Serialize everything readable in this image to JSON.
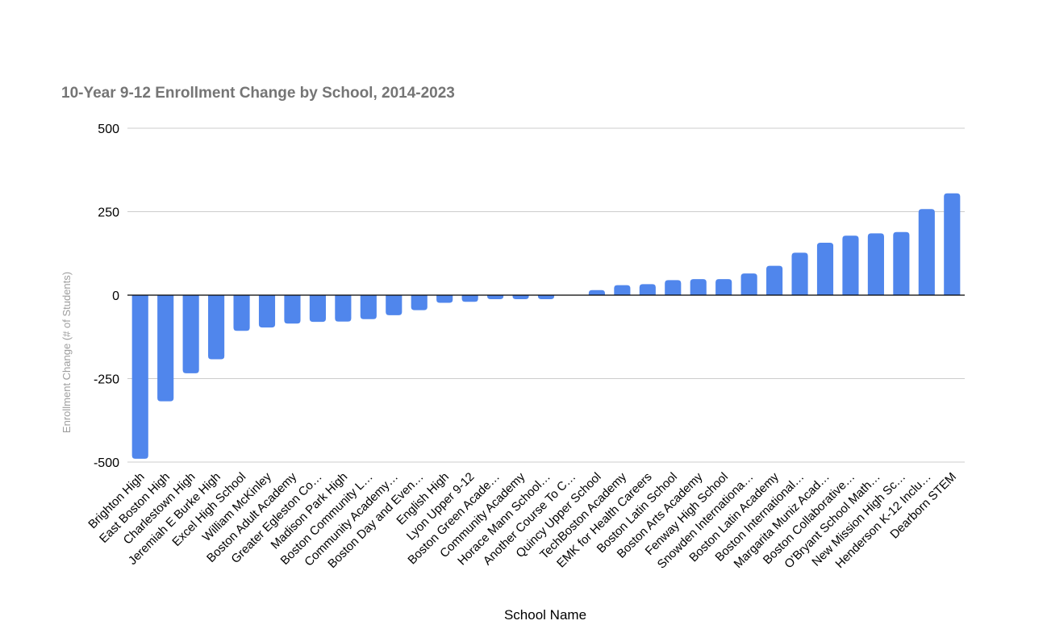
{
  "chart_data": {
    "type": "bar",
    "title": "10-Year 9-12 Enrollment Change by School, 2014-2023",
    "xlabel": "School Name",
    "ylabel": "Enrollment Change (# of Students)",
    "ylim": [
      -500,
      500
    ],
    "yticks": [
      500,
      250,
      0,
      -250,
      -500
    ],
    "grid": true,
    "bar_color": "#5086ec",
    "categories": [
      "Brighton High",
      "East Boston High",
      "Charlestown High",
      "Jeremiah E Burke High",
      "Excel High School",
      "William McKinley",
      "Boston Adult Academy",
      "Greater Egleston Co…",
      "Madison Park High",
      "Boston Community L…",
      "Community Academy…",
      "Boston Day and Even…",
      "English High",
      "Lyon Upper 9-12",
      "Boston Green Acade…",
      "Community Academy",
      "Horace Mann School…",
      "Another Course To C…",
      "Quincy Upper School",
      "TechBoston Academy",
      "EMK for Health Careers",
      "Boston Latin School",
      "Boston Arts Academy",
      "Fenway High School",
      "Snowden Internationa…",
      "Boston Latin Academy",
      "Boston International…",
      "Margarita Muniz Acad…",
      "Boston Collaborative…",
      "O'Bryant School Math…",
      "New Mission High Sc…",
      "Henderson K-12 Inclu…",
      "Dearborn STEM"
    ],
    "values": [
      -490,
      -318,
      -234,
      -192,
      -107,
      -97,
      -85,
      -80,
      -79,
      -72,
      -60,
      -45,
      -23,
      -20,
      -12,
      -12,
      -12,
      0,
      15,
      30,
      33,
      45,
      48,
      48,
      65,
      88,
      127,
      157,
      178,
      185,
      189,
      258,
      305
    ]
  }
}
